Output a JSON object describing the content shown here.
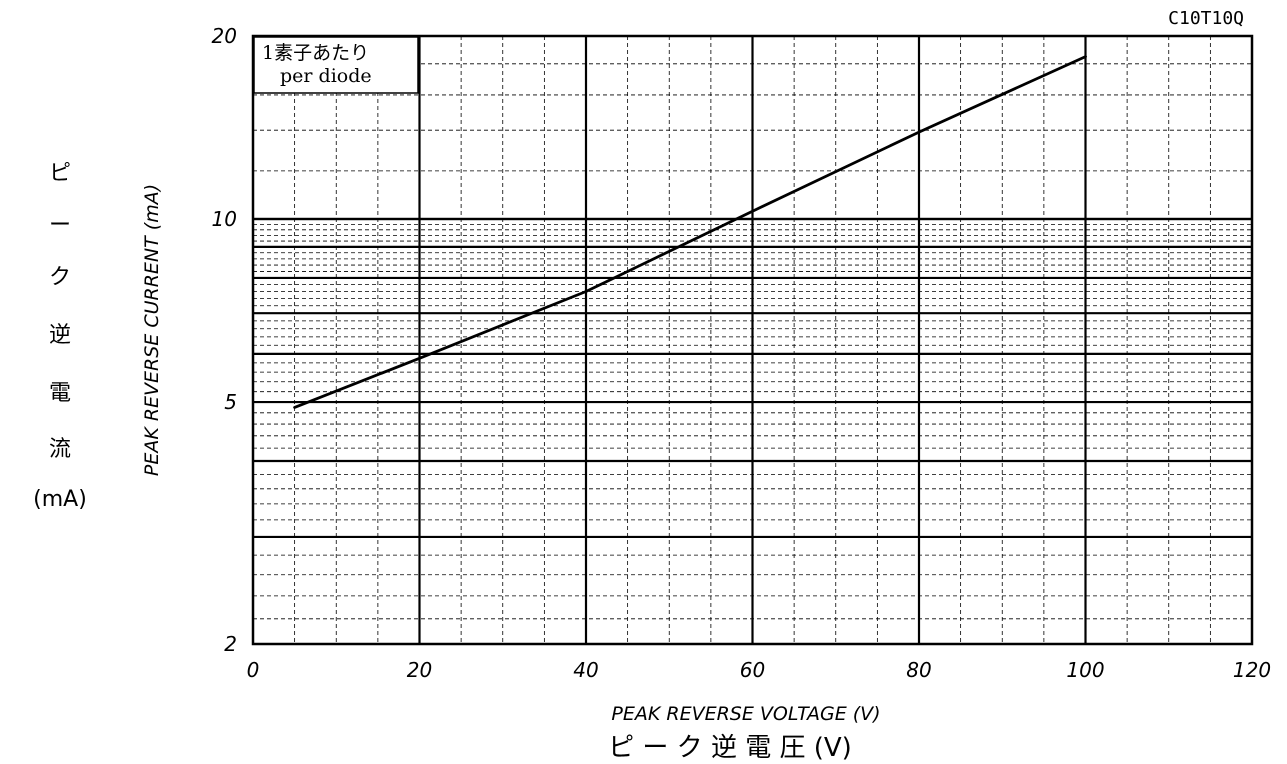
{
  "chart_data": {
    "type": "line",
    "model": "C10T10Q",
    "xlabel_en": "PEAK REVERSE VOLTAGE (V)",
    "xlabel_jp": "ピ ー ク 逆 電 圧  (V)",
    "ylabel_en": "PEAK REVERSE CURRENT (mA)",
    "ylabel_jp": [
      "ピ",
      "ー",
      "ク",
      "逆",
      "電",
      "流",
      "(mA)"
    ],
    "annotation": [
      "1素子あたり",
      "per diode"
    ],
    "x_scale": "linear",
    "y_scale": "log",
    "xlim": [
      0,
      120
    ],
    "ylim": [
      2,
      20
    ],
    "x_ticks": [
      "0",
      "20",
      "40",
      "60",
      "80",
      "100",
      "120"
    ],
    "y_ticks": [
      "20",
      "10",
      "5",
      "2"
    ],
    "grid": true,
    "series": [
      {
        "x": [
          5,
          20,
          40,
          60,
          80,
          100
        ],
        "y": [
          4.9,
          5.9,
          7.6,
          10.3,
          13.9,
          18.5
        ]
      }
    ]
  }
}
